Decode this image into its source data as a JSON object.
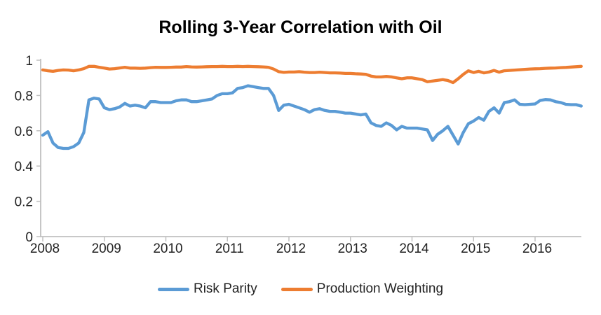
{
  "page": {
    "background": "#ffffff"
  },
  "chart_data": {
    "type": "line",
    "title": "Rolling 3-Year Correlation with Oil",
    "xlabel": "",
    "ylabel": "",
    "x_unit": "month",
    "x_start": "2008-01",
    "x_end": "2016-10",
    "x_tick_labels": [
      "2008",
      "2009",
      "2010",
      "2011",
      "2012",
      "2013",
      "2014",
      "2015",
      "2016"
    ],
    "x_tick_month_index": [
      0,
      12,
      24,
      36,
      48,
      60,
      72,
      84,
      96
    ],
    "y_ticks": [
      0,
      0.2,
      0.4,
      0.6,
      0.8,
      1
    ],
    "y_tick_labels": [
      "0",
      "0.2",
      "0.4",
      "0.6",
      "0.8",
      "1"
    ],
    "ylim": [
      0,
      1
    ],
    "grid": false,
    "legend_position": "bottom",
    "axis_color": "#C0C0C0",
    "tick_text_color": "#222222",
    "title_color": "#000000",
    "series": [
      {
        "name": "Risk Parity",
        "color": "#5B9BD5",
        "values": [
          0.575,
          0.595,
          0.53,
          0.505,
          0.5,
          0.5,
          0.51,
          0.53,
          0.59,
          0.775,
          0.785,
          0.78,
          0.73,
          0.72,
          0.725,
          0.735,
          0.755,
          0.74,
          0.745,
          0.74,
          0.73,
          0.765,
          0.765,
          0.76,
          0.76,
          0.76,
          0.77,
          0.775,
          0.775,
          0.765,
          0.765,
          0.77,
          0.775,
          0.78,
          0.8,
          0.81,
          0.81,
          0.815,
          0.84,
          0.845,
          0.855,
          0.85,
          0.845,
          0.84,
          0.84,
          0.8,
          0.715,
          0.745,
          0.75,
          0.74,
          0.73,
          0.72,
          0.705,
          0.72,
          0.725,
          0.715,
          0.71,
          0.71,
          0.705,
          0.7,
          0.7,
          0.695,
          0.69,
          0.695,
          0.645,
          0.63,
          0.625,
          0.645,
          0.63,
          0.605,
          0.625,
          0.615,
          0.615,
          0.615,
          0.61,
          0.605,
          0.545,
          0.58,
          0.6,
          0.625,
          0.575,
          0.525,
          0.59,
          0.64,
          0.655,
          0.675,
          0.66,
          0.71,
          0.73,
          0.7,
          0.76,
          0.765,
          0.775,
          0.75,
          0.748,
          0.75,
          0.752,
          0.772,
          0.777,
          0.775,
          0.765,
          0.76,
          0.75,
          0.748,
          0.748,
          0.74
        ]
      },
      {
        "name": "Production Weighting",
        "color": "#ED7D31",
        "values": [
          0.945,
          0.94,
          0.937,
          0.942,
          0.945,
          0.944,
          0.94,
          0.945,
          0.952,
          0.965,
          0.965,
          0.96,
          0.955,
          0.95,
          0.952,
          0.956,
          0.96,
          0.955,
          0.955,
          0.954,
          0.955,
          0.958,
          0.96,
          0.959,
          0.959,
          0.96,
          0.961,
          0.961,
          0.964,
          0.962,
          0.961,
          0.962,
          0.963,
          0.964,
          0.964,
          0.965,
          0.964,
          0.964,
          0.965,
          0.964,
          0.965,
          0.964,
          0.963,
          0.962,
          0.96,
          0.95,
          0.935,
          0.931,
          0.933,
          0.933,
          0.935,
          0.932,
          0.93,
          0.93,
          0.932,
          0.93,
          0.928,
          0.928,
          0.927,
          0.925,
          0.925,
          0.923,
          0.922,
          0.92,
          0.91,
          0.905,
          0.905,
          0.908,
          0.905,
          0.9,
          0.895,
          0.9,
          0.9,
          0.895,
          0.89,
          0.878,
          0.882,
          0.886,
          0.89,
          0.885,
          0.873,
          0.895,
          0.92,
          0.94,
          0.93,
          0.937,
          0.928,
          0.933,
          0.942,
          0.932,
          0.94,
          0.942,
          0.944,
          0.946,
          0.948,
          0.95,
          0.951,
          0.952,
          0.954,
          0.955,
          0.956,
          0.958,
          0.959,
          0.961,
          0.963,
          0.965
        ]
      }
    ]
  }
}
